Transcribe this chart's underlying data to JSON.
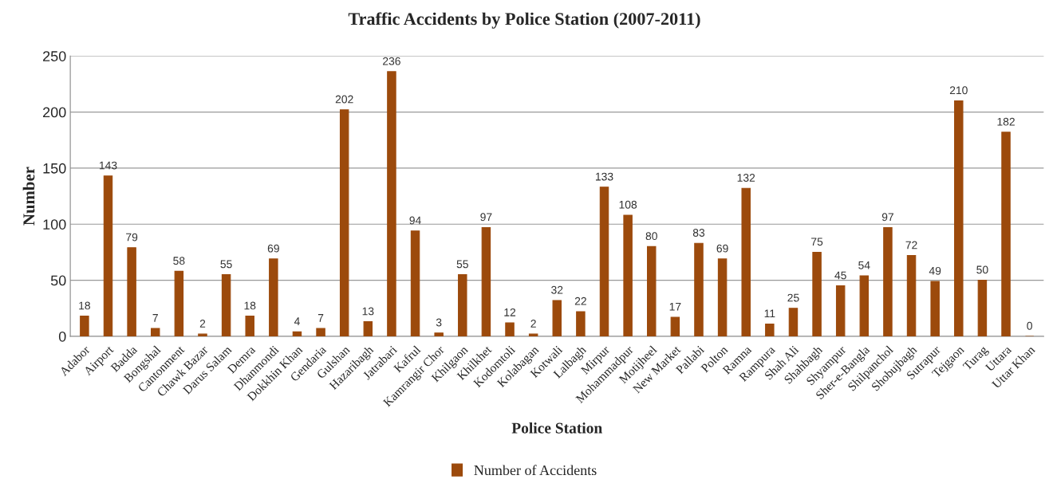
{
  "chart_data": {
    "type": "bar",
    "title": "Traffic Accidents by Police Station (2007-2011)",
    "xlabel": "Police Station",
    "ylabel": "Number",
    "categories": [
      "Adabor",
      "Airport",
      "Badda",
      "Bongshal",
      "Cantonment",
      "Chawk Bazar",
      "Darus Salam",
      "Demra",
      "Dhanmondi",
      "Dokkhin Khan",
      "Gendaria",
      "Gulshan",
      "Hazaribagh",
      "Jatrabari",
      "Kafrul",
      "Kamrangir Chor",
      "Khilgaon",
      "Khilkhet",
      "Kodomtoli",
      "Kolabagan",
      "Kotwali",
      "Lalbagh",
      "Mirpur",
      "Mohammadpur",
      "Motijheel",
      "New Market",
      "Pallabi",
      "Polton",
      "Ramna",
      "Rampura",
      "Shah Ali",
      "Shahbagh",
      "Shyampur",
      "Sher-e-Bangla",
      "Shilpanchol",
      "Shobujbagh",
      "Sutrapur",
      "Tejgaon",
      "Turag",
      "Uttara",
      "Uttar Khan"
    ],
    "series": [
      {
        "name": "Number of Accidents",
        "color": "#9c4a0c",
        "values": [
          18,
          143,
          79,
          7,
          58,
          2,
          55,
          18,
          69,
          4,
          7,
          202,
          13,
          236,
          94,
          3,
          55,
          97,
          12,
          2,
          32,
          22,
          133,
          108,
          80,
          17,
          83,
          69,
          132,
          11,
          25,
          75,
          45,
          54,
          97,
          72,
          49,
          210,
          50,
          182,
          0
        ]
      }
    ],
    "ylim": [
      0,
      250
    ],
    "yticks": [
      0,
      50,
      100,
      150,
      200,
      250
    ],
    "grid": "y",
    "legend": "bottom",
    "data_labels": true
  }
}
